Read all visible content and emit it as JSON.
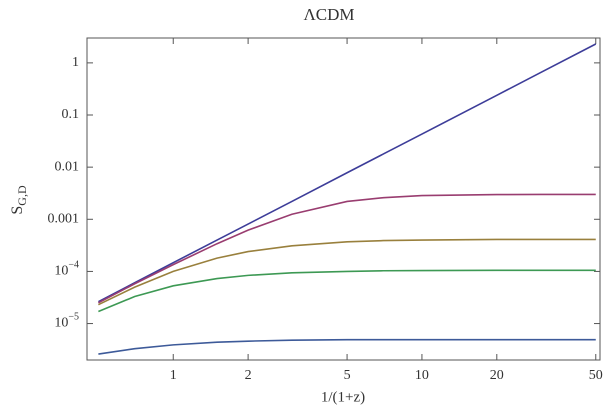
{
  "chart_data": {
    "type": "line",
    "title": "ΛCDM",
    "xlabel": "1/(1+z)",
    "ylabel": {
      "text": "S",
      "subscript": "G,D"
    },
    "xscale": "log",
    "yscale": "log",
    "xlim": [
      0.45,
      52
    ],
    "ylim": [
      2e-06,
      3
    ],
    "xticks": [
      1,
      2,
      5,
      10,
      20,
      50
    ],
    "yticks": [
      1,
      0.1,
      0.01,
      0.001,
      {
        "value": 0.0001,
        "label": "10",
        "exponent": "−4"
      },
      {
        "value": 1e-05,
        "label": "10",
        "exponent": "−5"
      }
    ],
    "x": [
      0.5,
      0.7,
      1,
      1.5,
      2,
      3,
      5,
      7,
      10,
      20,
      30,
      50
    ],
    "series": [
      {
        "color": "#3d3d99",
        "values": [
          2.63e-05,
          6.06e-05,
          0.000147,
          0.000399,
          0.00081,
          0.0022,
          0.0078,
          0.0179,
          0.0431,
          0.239,
          0.651,
          2.3
        ]
      },
      {
        "color": "#993d70",
        "values": [
          2.5e-05,
          5.8e-05,
          0.000135,
          0.00034,
          0.00062,
          0.00125,
          0.0022,
          0.0026,
          0.00285,
          0.00298,
          0.003,
          0.003
        ]
      },
      {
        "color": "#99803d",
        "values": [
          2.3e-05,
          5e-05,
          0.0001,
          0.00018,
          0.00024,
          0.00031,
          0.00037,
          0.00039,
          0.0004,
          0.00041,
          0.00041,
          0.00041
        ]
      },
      {
        "color": "#3d9954",
        "values": [
          1.7e-05,
          3.3e-05,
          5.3e-05,
          7.3e-05,
          8.4e-05,
          9.4e-05,
          0.0001,
          0.000103,
          0.000104,
          0.000105,
          0.000105,
          0.000105
        ]
      },
      {
        "color": "#3d5a99",
        "values": [
          2.6e-06,
          3.3e-06,
          3.9e-06,
          4.4e-06,
          4.6e-06,
          4.8e-06,
          4.9e-06,
          4.9e-06,
          4.9e-06,
          4.9e-06,
          4.9e-06,
          4.9e-06
        ]
      }
    ]
  }
}
